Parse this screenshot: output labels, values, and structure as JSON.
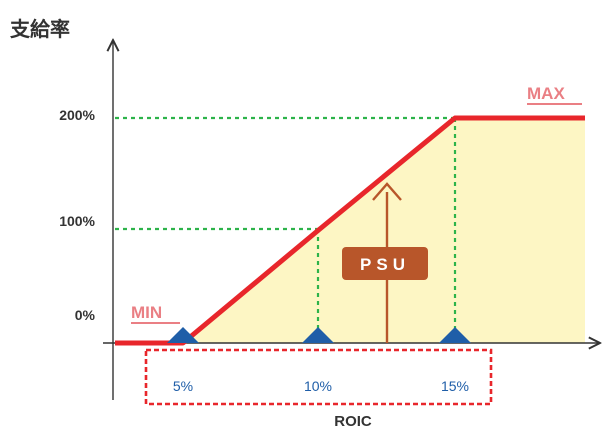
{
  "chart_data": {
    "type": "line",
    "title": "支給率",
    "xlabel": "ROIC",
    "ylabel": "",
    "x_ticks": [
      "5%",
      "10%",
      "15%"
    ],
    "y_ticks": [
      "0%",
      "100%",
      "200%"
    ],
    "series": [
      {
        "points": [
          {
            "x": 0,
            "y": 0
          },
          {
            "x": 5,
            "y": 0
          },
          {
            "x": 10,
            "y": 100
          },
          {
            "x": 15,
            "y": 200
          },
          {
            "x": 20,
            "y": 200
          }
        ]
      }
    ],
    "xlim": [
      0,
      20
    ],
    "ylim": [
      0,
      200
    ],
    "annotations": {
      "min_label": "MIN",
      "max_label": "MAX",
      "psu_label": "PSU"
    },
    "colors": {
      "line": "#e8262b",
      "fill": "#fdf6c4",
      "guide": "#2db34a",
      "arrow": "#b8562a",
      "label_bg": "#b8562a",
      "label_pink": "#ea7f84",
      "marker": "#1f5ea8",
      "tick_text": "#1f5ea8",
      "highlight_box": "#e8262b",
      "axis": "#333333"
    }
  }
}
